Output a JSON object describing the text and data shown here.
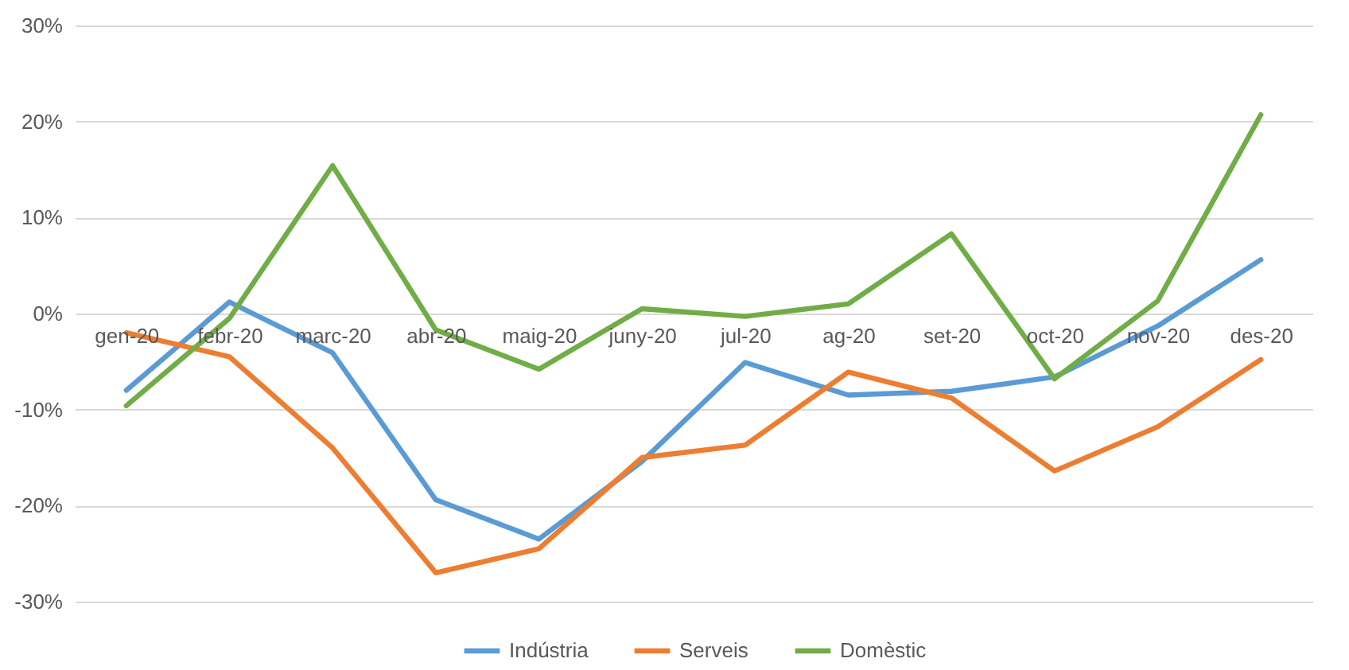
{
  "chart_data": {
    "type": "line",
    "categories": [
      "gen-20",
      "febr-20",
      "marc-20",
      "abr-20",
      "maig-20",
      "juny-20",
      "jul-20",
      "ag-20",
      "set-20",
      "oct-20",
      "nov-20",
      "des-20"
    ],
    "series": [
      {
        "name": "Indústria",
        "color": "#5b9bd5",
        "values": [
          -8.0,
          1.2,
          -4.1,
          -19.4,
          -23.5,
          -15.4,
          -5.1,
          -8.5,
          -8.1,
          -6.6,
          -1.3,
          5.6
        ]
      },
      {
        "name": "Serveis",
        "color": "#ed7d31",
        "values": [
          -2.0,
          -4.5,
          -14.0,
          -27.0,
          -24.5,
          -15.0,
          -13.7,
          -6.1,
          -8.8,
          -16.4,
          -11.8,
          -4.8
        ]
      },
      {
        "name": "Domèstic",
        "color": "#70ad47",
        "values": [
          -9.6,
          -0.5,
          15.4,
          -1.7,
          -5.8,
          0.5,
          -0.3,
          1.0,
          8.3,
          -6.8,
          1.3,
          20.7
        ]
      }
    ],
    "ylim": [
      -30,
      30
    ],
    "yticks": [
      {
        "value": -30,
        "label": "-30%"
      },
      {
        "value": -20,
        "label": "-20%"
      },
      {
        "value": -10,
        "label": "-10%"
      },
      {
        "value": 0,
        "label": "0%"
      },
      {
        "value": 10,
        "label": "10%"
      },
      {
        "value": 20,
        "label": "20%"
      },
      {
        "value": 30,
        "label": "30%"
      }
    ],
    "grid": "y",
    "legend": "bottom",
    "marker": "none",
    "line_style": "solid"
  }
}
